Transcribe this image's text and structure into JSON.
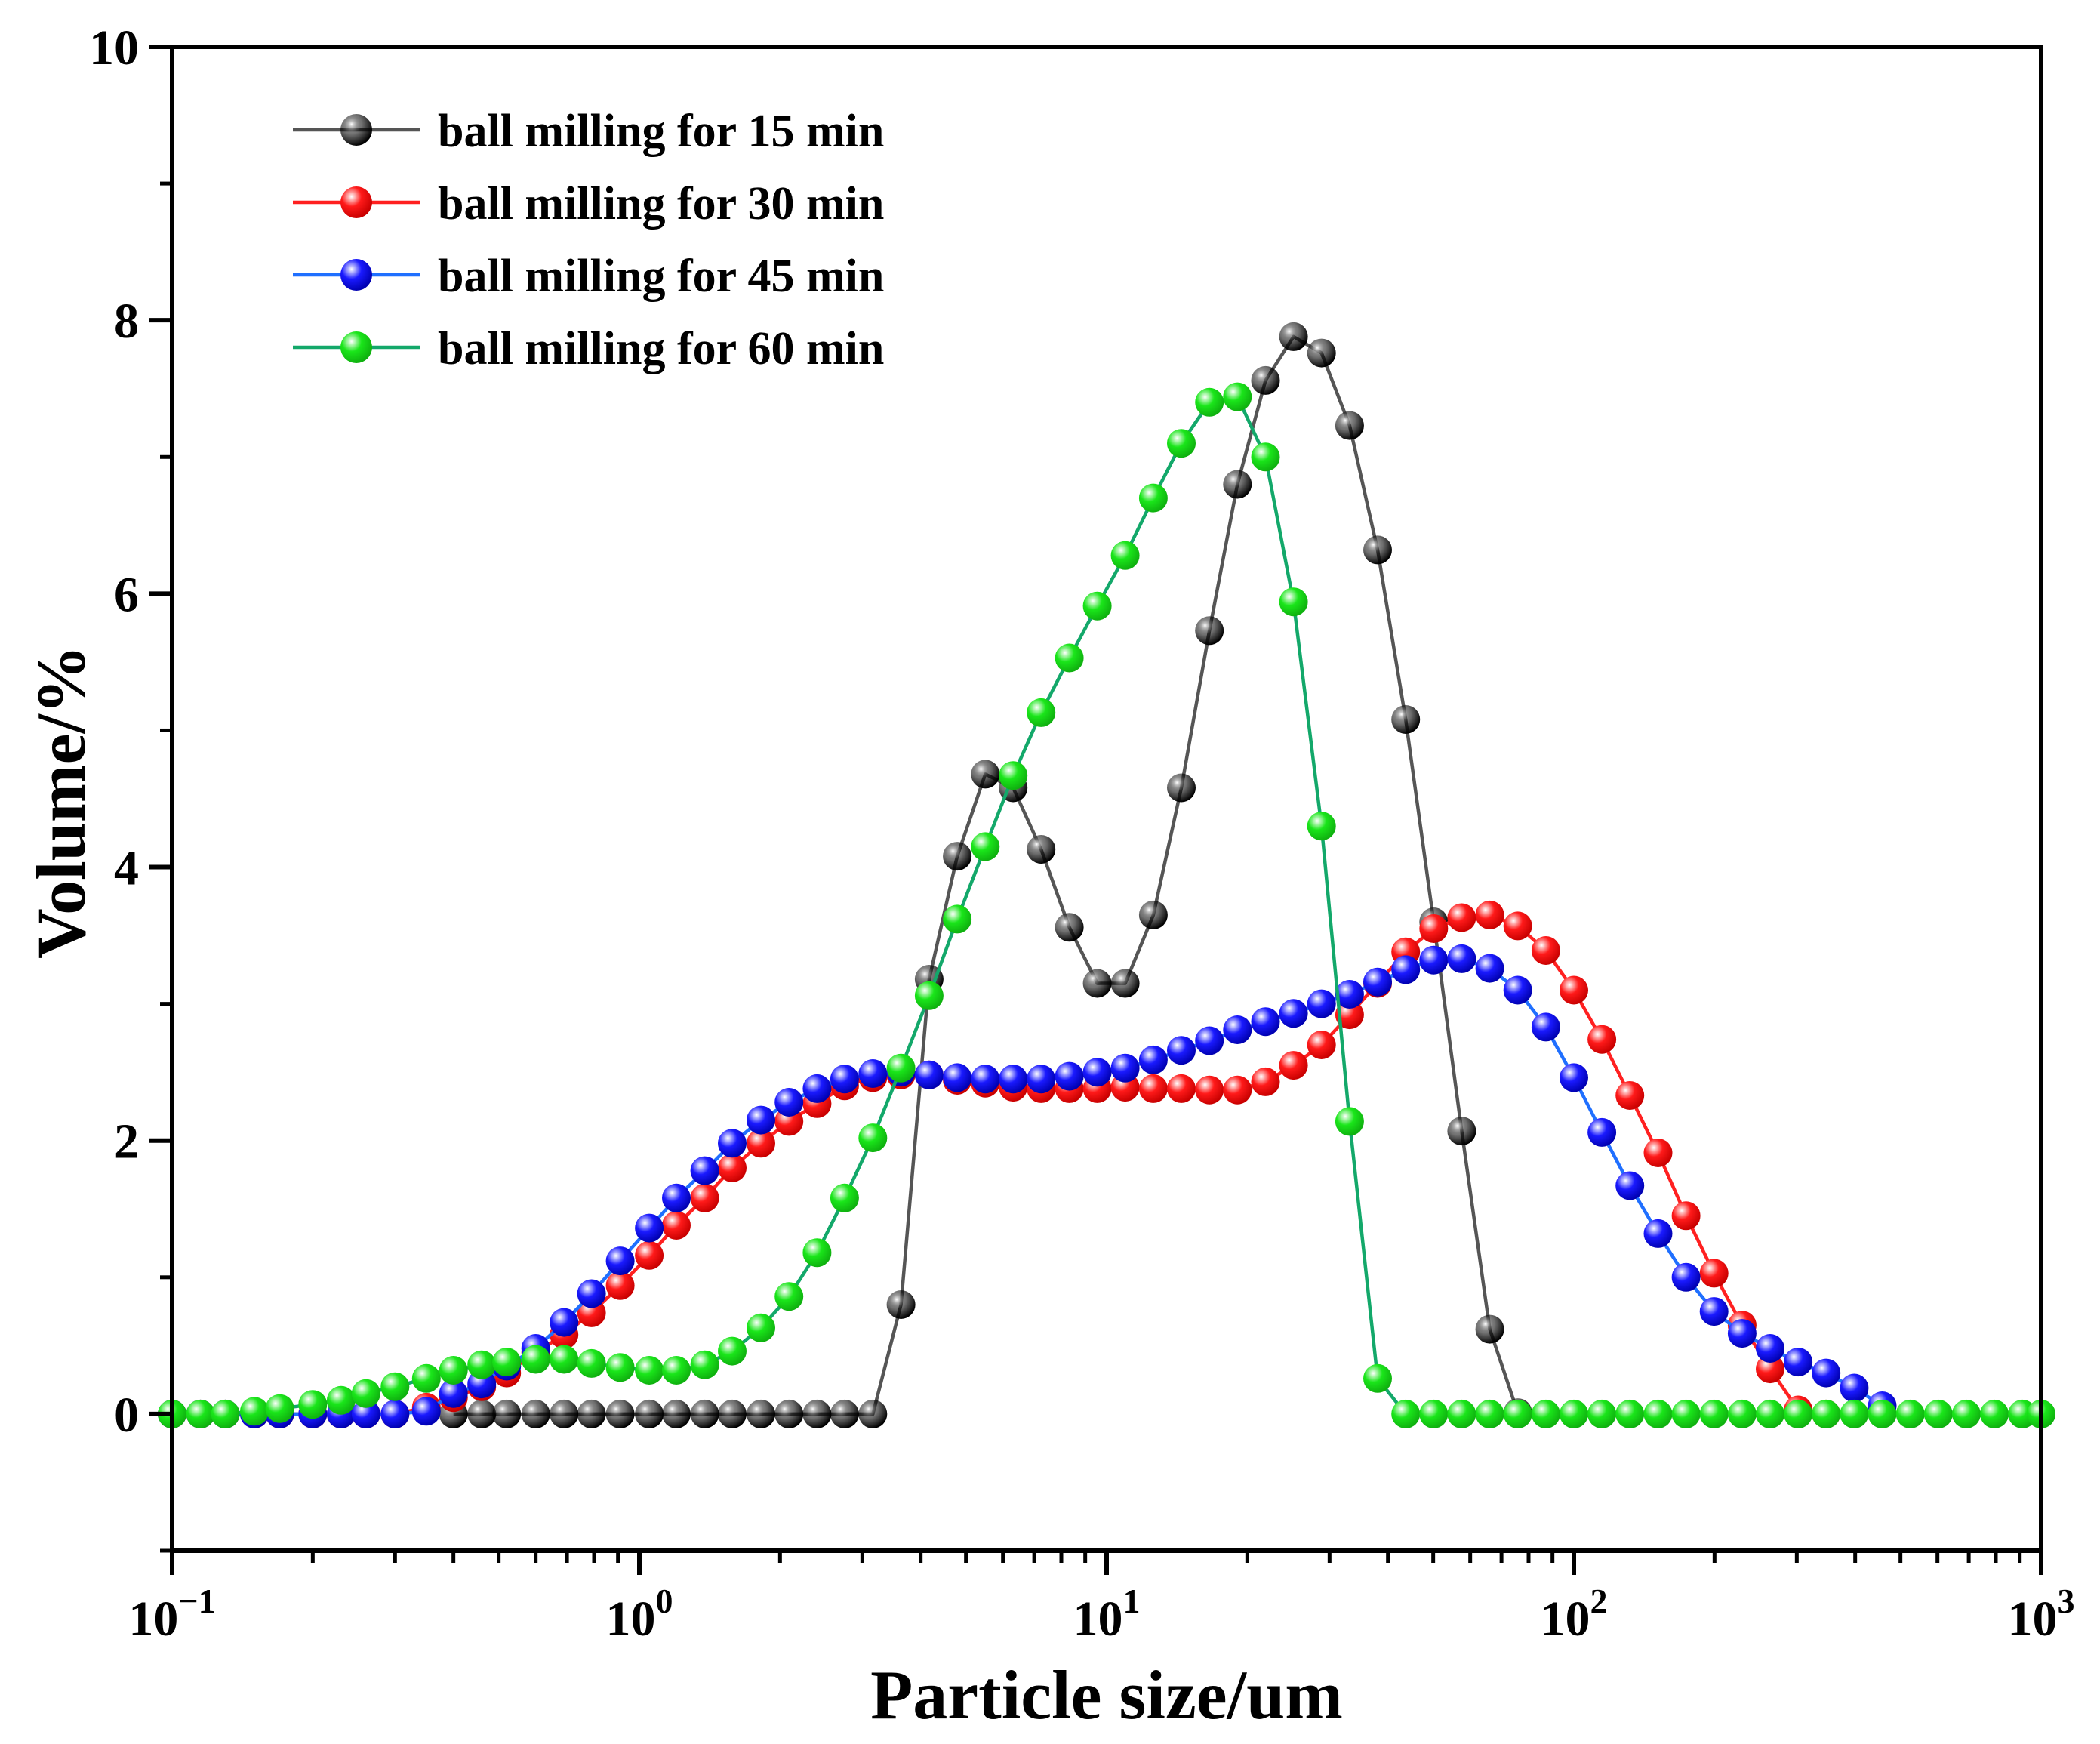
{
  "chart_data": {
    "type": "line",
    "xlabel": "Particle size/um",
    "ylabel": "Volume/%",
    "xscale": "log",
    "xlim": [
      0.1,
      1000
    ],
    "ylim": [
      -1,
      10
    ],
    "x_tick_labels": [
      {
        "base": "10",
        "exp": "−1",
        "value": 0.1
      },
      {
        "base": "10",
        "exp": "0",
        "value": 1
      },
      {
        "base": "10",
        "exp": "1",
        "value": 10
      },
      {
        "base": "10",
        "exp": "2",
        "value": 100
      },
      {
        "base": "10",
        "exp": "3",
        "value": 1000
      }
    ],
    "y_tick_labels": [
      "0",
      "2",
      "4",
      "6",
      "8",
      "10"
    ],
    "y_tick_values": [
      0,
      2,
      4,
      6,
      8,
      10
    ],
    "legend_position": "top-left",
    "grid": false,
    "series": [
      {
        "name": "ball milling for 15 min",
        "color": "#000000",
        "line_color": "#555555",
        "points": [
          [
            0.4,
            0
          ],
          [
            0.46,
            0
          ],
          [
            0.52,
            0
          ],
          [
            0.6,
            0
          ],
          [
            0.69,
            0
          ],
          [
            0.79,
            0
          ],
          [
            0.91,
            0
          ],
          [
            1.05,
            0
          ],
          [
            1.2,
            0
          ],
          [
            1.38,
            0
          ],
          [
            1.58,
            0
          ],
          [
            1.82,
            0
          ],
          [
            2.09,
            0
          ],
          [
            2.4,
            0
          ],
          [
            2.75,
            0
          ],
          [
            3.16,
            0
          ],
          [
            3.63,
            0.8
          ],
          [
            4.17,
            3.18
          ],
          [
            4.79,
            4.08
          ],
          [
            5.5,
            4.68
          ],
          [
            6.31,
            4.58
          ],
          [
            7.24,
            4.13
          ],
          [
            8.32,
            3.56
          ],
          [
            9.55,
            3.15
          ],
          [
            10.96,
            3.15
          ],
          [
            12.59,
            3.65
          ],
          [
            14.45,
            4.58
          ],
          [
            16.6,
            5.73
          ],
          [
            19.05,
            6.8
          ],
          [
            21.88,
            7.56
          ],
          [
            25.12,
            7.88
          ],
          [
            28.84,
            7.76
          ],
          [
            33.11,
            7.23
          ],
          [
            38.02,
            6.32
          ],
          [
            43.65,
            5.08
          ],
          [
            50.12,
            3.6
          ],
          [
            57.54,
            2.07
          ],
          [
            66.07,
            0.62
          ],
          [
            75.86,
            0.01
          ]
        ]
      },
      {
        "name": "ball milling for 30 min",
        "color": "#ff1a1a",
        "line_color": "#ff2020",
        "points": [
          [
            0.1,
            0
          ],
          [
            0.115,
            0
          ],
          [
            0.13,
            0
          ],
          [
            0.15,
            0
          ],
          [
            0.17,
            0
          ],
          [
            0.2,
            0
          ],
          [
            0.23,
            0
          ],
          [
            0.26,
            0
          ],
          [
            0.3,
            0
          ],
          [
            0.35,
            0.05
          ],
          [
            0.4,
            0.12
          ],
          [
            0.46,
            0.2
          ],
          [
            0.52,
            0.3
          ],
          [
            0.6,
            0.45
          ],
          [
            0.69,
            0.58
          ],
          [
            0.79,
            0.74
          ],
          [
            0.91,
            0.94
          ],
          [
            1.05,
            1.16
          ],
          [
            1.2,
            1.38
          ],
          [
            1.38,
            1.58
          ],
          [
            1.58,
            1.8
          ],
          [
            1.82,
            1.98
          ],
          [
            2.09,
            2.14
          ],
          [
            2.4,
            2.27
          ],
          [
            2.75,
            2.4
          ],
          [
            3.16,
            2.46
          ],
          [
            3.63,
            2.48
          ],
          [
            4.17,
            2.48
          ],
          [
            4.79,
            2.44
          ],
          [
            5.5,
            2.42
          ],
          [
            6.31,
            2.39
          ],
          [
            7.24,
            2.38
          ],
          [
            8.32,
            2.38
          ],
          [
            9.55,
            2.38
          ],
          [
            10.96,
            2.39
          ],
          [
            12.59,
            2.38
          ],
          [
            14.45,
            2.38
          ],
          [
            16.6,
            2.37
          ],
          [
            19.05,
            2.37
          ],
          [
            21.88,
            2.43
          ],
          [
            25.12,
            2.55
          ],
          [
            28.84,
            2.7
          ],
          [
            33.11,
            2.92
          ],
          [
            38.02,
            3.15
          ],
          [
            43.65,
            3.38
          ],
          [
            50.12,
            3.55
          ],
          [
            57.54,
            3.63
          ],
          [
            66.07,
            3.65
          ],
          [
            75.86,
            3.57
          ],
          [
            87.1,
            3.39
          ],
          [
            100.0,
            3.1
          ],
          [
            114.8,
            2.74
          ],
          [
            131.8,
            2.33
          ],
          [
            151.4,
            1.91
          ],
          [
            173.8,
            1.45
          ],
          [
            199.5,
            1.03
          ],
          [
            229.1,
            0.65
          ],
          [
            263.0,
            0.33
          ],
          [
            302.0,
            0.03
          ],
          [
            346.7,
            0
          ]
        ]
      },
      {
        "name": "ball milling for 45 min",
        "color": "#1a1aff",
        "line_color": "#1f6fff",
        "points": [
          [
            0.1,
            0
          ],
          [
            0.115,
            0
          ],
          [
            0.13,
            0
          ],
          [
            0.15,
            0
          ],
          [
            0.17,
            0
          ],
          [
            0.2,
            0
          ],
          [
            0.23,
            0
          ],
          [
            0.26,
            0
          ],
          [
            0.3,
            0
          ],
          [
            0.35,
            0.02
          ],
          [
            0.4,
            0.15
          ],
          [
            0.46,
            0.22
          ],
          [
            0.52,
            0.35
          ],
          [
            0.6,
            0.48
          ],
          [
            0.69,
            0.67
          ],
          [
            0.79,
            0.88
          ],
          [
            0.91,
            1.12
          ],
          [
            1.05,
            1.36
          ],
          [
            1.2,
            1.58
          ],
          [
            1.38,
            1.78
          ],
          [
            1.58,
            1.98
          ],
          [
            1.82,
            2.15
          ],
          [
            2.09,
            2.28
          ],
          [
            2.4,
            2.38
          ],
          [
            2.75,
            2.45
          ],
          [
            3.16,
            2.49
          ],
          [
            3.63,
            2.5
          ],
          [
            4.17,
            2.48
          ],
          [
            4.79,
            2.46
          ],
          [
            5.5,
            2.45
          ],
          [
            6.31,
            2.45
          ],
          [
            7.24,
            2.45
          ],
          [
            8.32,
            2.47
          ],
          [
            9.55,
            2.5
          ],
          [
            10.96,
            2.53
          ],
          [
            12.59,
            2.59
          ],
          [
            14.45,
            2.66
          ],
          [
            16.6,
            2.73
          ],
          [
            19.05,
            2.81
          ],
          [
            21.88,
            2.87
          ],
          [
            25.12,
            2.93
          ],
          [
            28.84,
            3.0
          ],
          [
            33.11,
            3.07
          ],
          [
            38.02,
            3.16
          ],
          [
            43.65,
            3.25
          ],
          [
            50.12,
            3.32
          ],
          [
            57.54,
            3.33
          ],
          [
            66.07,
            3.26
          ],
          [
            75.86,
            3.1
          ],
          [
            87.1,
            2.83
          ],
          [
            100.0,
            2.46
          ],
          [
            114.8,
            2.06
          ],
          [
            131.8,
            1.67
          ],
          [
            151.4,
            1.32
          ],
          [
            173.8,
            1.0
          ],
          [
            199.5,
            0.75
          ],
          [
            229.1,
            0.59
          ],
          [
            263.0,
            0.48
          ],
          [
            302.0,
            0.38
          ],
          [
            346.7,
            0.3
          ],
          [
            398.1,
            0.19
          ],
          [
            457.1,
            0.06
          ]
        ]
      },
      {
        "name": "ball milling for 60 min",
        "color": "#1ae61a",
        "line_color": "#13a86a",
        "points": [
          [
            0.1,
            0
          ],
          [
            0.115,
            0
          ],
          [
            0.13,
            0
          ],
          [
            0.15,
            0.02
          ],
          [
            0.17,
            0.04
          ],
          [
            0.2,
            0.07
          ],
          [
            0.23,
            0.1
          ],
          [
            0.26,
            0.15
          ],
          [
            0.3,
            0.2
          ],
          [
            0.35,
            0.26
          ],
          [
            0.4,
            0.32
          ],
          [
            0.46,
            0.36
          ],
          [
            0.52,
            0.38
          ],
          [
            0.6,
            0.4
          ],
          [
            0.69,
            0.4
          ],
          [
            0.79,
            0.37
          ],
          [
            0.91,
            0.34
          ],
          [
            1.05,
            0.32
          ],
          [
            1.2,
            0.32
          ],
          [
            1.38,
            0.36
          ],
          [
            1.58,
            0.46
          ],
          [
            1.82,
            0.63
          ],
          [
            2.09,
            0.86
          ],
          [
            2.4,
            1.18
          ],
          [
            2.75,
            1.58
          ],
          [
            3.16,
            2.02
          ],
          [
            3.63,
            2.53
          ],
          [
            4.17,
            3.06
          ],
          [
            4.79,
            3.62
          ],
          [
            5.5,
            4.15
          ],
          [
            6.31,
            4.67
          ],
          [
            7.24,
            5.13
          ],
          [
            8.32,
            5.53
          ],
          [
            9.55,
            5.91
          ],
          [
            10.96,
            6.28
          ],
          [
            12.59,
            6.7
          ],
          [
            14.45,
            7.1
          ],
          [
            16.6,
            7.4
          ],
          [
            19.05,
            7.44
          ],
          [
            21.88,
            7.0
          ],
          [
            25.12,
            5.94
          ],
          [
            28.84,
            4.3
          ],
          [
            33.11,
            2.14
          ],
          [
            38.02,
            0.26
          ],
          [
            43.65,
            0
          ],
          [
            50.12,
            0
          ],
          [
            57.54,
            0
          ],
          [
            66.07,
            0
          ],
          [
            75.86,
            0
          ],
          [
            87.1,
            0
          ],
          [
            100.0,
            0
          ],
          [
            114.8,
            0
          ],
          [
            131.8,
            0
          ],
          [
            151.4,
            0
          ],
          [
            173.8,
            0
          ],
          [
            199.5,
            0
          ],
          [
            229.1,
            0
          ],
          [
            263.0,
            0
          ],
          [
            302.0,
            0
          ],
          [
            346.7,
            0
          ],
          [
            398.1,
            0
          ],
          [
            457.1,
            0
          ],
          [
            524.8,
            0
          ],
          [
            602.6,
            0
          ],
          [
            691.8,
            0
          ],
          [
            794.3,
            0
          ],
          [
            912.0,
            0
          ],
          [
            1000,
            0
          ]
        ]
      }
    ]
  }
}
